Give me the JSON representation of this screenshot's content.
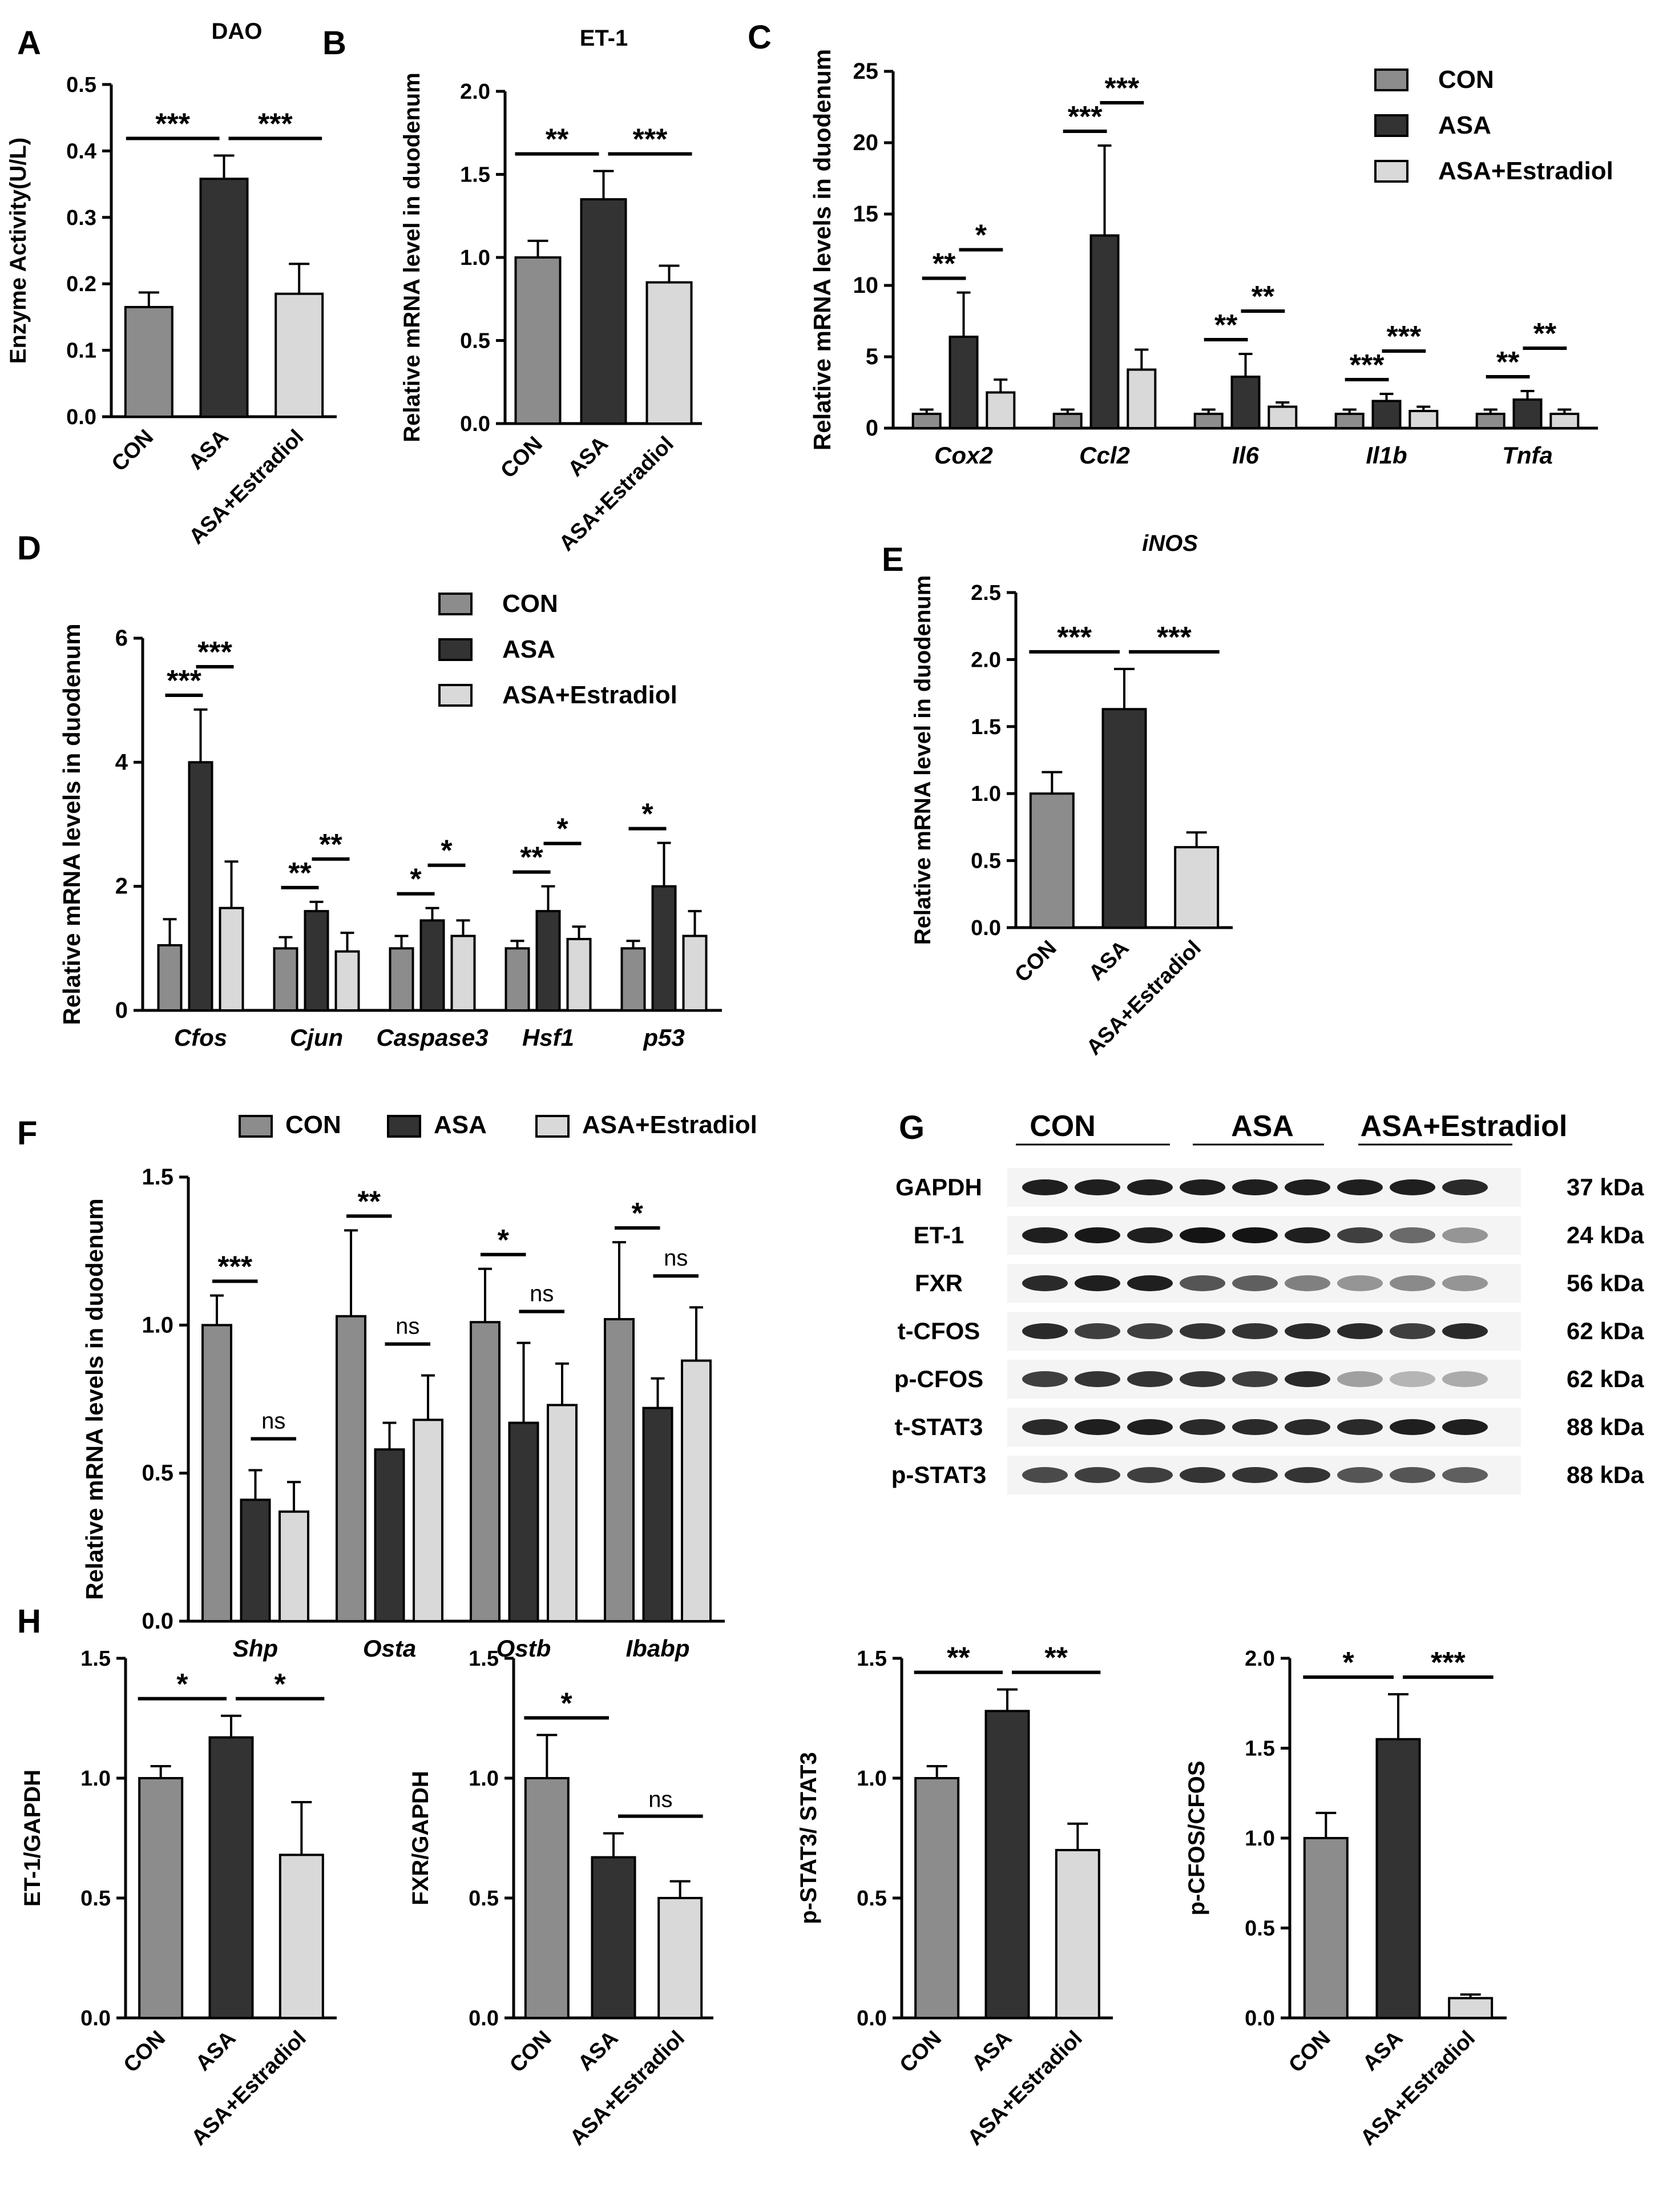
{
  "colors": {
    "con": "#8c8c8c",
    "asa": "#333333",
    "estr": "#d9d9d9",
    "axis": "#000000"
  },
  "chart_data": [
    {
      "id": "A",
      "panel_label": "A",
      "type": "bar",
      "title": "DAO",
      "ylabel": "Enzyme Activity(U/L)",
      "ylim": [
        0,
        0.5
      ],
      "yticks": [
        "0.0",
        "0.1",
        "0.2",
        "0.3",
        "0.4",
        "0.5"
      ],
      "categories": [
        "CON",
        "ASA",
        "ASA+Estradiol"
      ],
      "values": [
        0.165,
        0.358,
        0.185
      ],
      "errors": [
        0.022,
        0.035,
        0.045
      ],
      "sig": [
        {
          "from": 0,
          "to": 1,
          "label": "***"
        },
        {
          "from": 1,
          "to": 2,
          "label": "***"
        }
      ]
    },
    {
      "id": "B",
      "panel_label": "B",
      "type": "bar",
      "title": "ET-1",
      "ylabel": "Relative mRNA level in duodenum",
      "ylim": [
        0,
        2.0
      ],
      "yticks": [
        "0.0",
        "0.5",
        "1.0",
        "1.5",
        "2.0"
      ],
      "categories": [
        "CON",
        "ASA",
        "ASA+Estradiol"
      ],
      "values": [
        1.0,
        1.35,
        0.85
      ],
      "errors": [
        0.1,
        0.17,
        0.1
      ],
      "sig": [
        {
          "from": 0,
          "to": 1,
          "label": "**"
        },
        {
          "from": 1,
          "to": 2,
          "label": "***"
        }
      ]
    },
    {
      "id": "C",
      "panel_label": "C",
      "type": "bar",
      "ylabel": "Relative mRNA levels in duodenum",
      "ylim": [
        0,
        25
      ],
      "yticks": [
        "0",
        "5",
        "10",
        "15",
        "20",
        "25"
      ],
      "categories": [
        "Cox2",
        "Ccl2",
        "Il6",
        "Il1b",
        "Tnfa"
      ],
      "series": [
        {
          "name": "CON",
          "values": [
            1.0,
            1.0,
            1.0,
            1.0,
            1.0
          ],
          "errors": [
            0.3,
            0.3,
            0.3,
            0.3,
            0.3
          ]
        },
        {
          "name": "ASA",
          "values": [
            6.4,
            13.5,
            3.6,
            1.9,
            2.0
          ],
          "errors": [
            3.1,
            6.3,
            1.6,
            0.5,
            0.6
          ]
        },
        {
          "name": "ASA+Estradiol",
          "values": [
            2.5,
            4.1,
            1.5,
            1.2,
            1.0
          ],
          "errors": [
            0.9,
            1.4,
            0.3,
            0.3,
            0.3
          ]
        }
      ],
      "sig": [
        {
          "cat": 0,
          "from": 0,
          "to": 1,
          "label": "**"
        },
        {
          "cat": 0,
          "from": 1,
          "to": 2,
          "label": "*"
        },
        {
          "cat": 1,
          "from": 0,
          "to": 1,
          "label": "***"
        },
        {
          "cat": 1,
          "from": 1,
          "to": 2,
          "label": "***"
        },
        {
          "cat": 2,
          "from": 0,
          "to": 1,
          "label": "**"
        },
        {
          "cat": 2,
          "from": 1,
          "to": 2,
          "label": "**"
        },
        {
          "cat": 3,
          "from": 0,
          "to": 1,
          "label": "***"
        },
        {
          "cat": 3,
          "from": 1,
          "to": 2,
          "label": "***"
        },
        {
          "cat": 4,
          "from": 0,
          "to": 1,
          "label": "**"
        },
        {
          "cat": 4,
          "from": 1,
          "to": 2,
          "label": "**"
        }
      ],
      "legend": [
        "CON",
        "ASA",
        "ASA+Estradiol"
      ]
    },
    {
      "id": "D",
      "panel_label": "D",
      "type": "bar",
      "ylabel": "Relative mRNA levels in duodenum",
      "ylim": [
        0,
        6
      ],
      "yticks": [
        "0",
        "2",
        "4",
        "6"
      ],
      "categories": [
        "Cfos",
        "Cjun",
        "Caspase3",
        "Hsf1",
        "p53"
      ],
      "series": [
        {
          "name": "CON",
          "values": [
            1.05,
            1.0,
            1.0,
            1.0,
            1.0
          ],
          "errors": [
            0.42,
            0.18,
            0.2,
            0.12,
            0.12
          ]
        },
        {
          "name": "ASA",
          "values": [
            4.0,
            1.6,
            1.45,
            1.6,
            2.0
          ],
          "errors": [
            0.85,
            0.15,
            0.2,
            0.4,
            0.7
          ]
        },
        {
          "name": "ASA+Estradiol",
          "values": [
            1.65,
            0.95,
            1.2,
            1.15,
            1.2
          ],
          "errors": [
            0.75,
            0.3,
            0.25,
            0.2,
            0.4
          ]
        }
      ],
      "sig": [
        {
          "cat": 0,
          "from": 0,
          "to": 1,
          "label": "***"
        },
        {
          "cat": 0,
          "from": 1,
          "to": 2,
          "label": "***"
        },
        {
          "cat": 1,
          "from": 0,
          "to": 1,
          "label": "**"
        },
        {
          "cat": 1,
          "from": 1,
          "to": 2,
          "label": "**"
        },
        {
          "cat": 2,
          "from": 0,
          "to": 1,
          "label": "*"
        },
        {
          "cat": 2,
          "from": 1,
          "to": 2,
          "label": "*"
        },
        {
          "cat": 3,
          "from": 0,
          "to": 1,
          "label": "**"
        },
        {
          "cat": 3,
          "from": 1,
          "to": 2,
          "label": "*"
        },
        {
          "cat": 4,
          "from": 0,
          "to": 1,
          "label": "*"
        }
      ],
      "legend": [
        "CON",
        "ASA",
        "ASA+Estradiol"
      ]
    },
    {
      "id": "E",
      "panel_label": "E",
      "type": "bar",
      "title": "iNOS",
      "ylabel": "Relative mRNA level in duodenum",
      "ylim": [
        0,
        2.5
      ],
      "yticks": [
        "0.0",
        "0.5",
        "1.0",
        "1.5",
        "2.0",
        "2.5"
      ],
      "categories": [
        "CON",
        "ASA",
        "ASA+Estradiol"
      ],
      "values": [
        1.0,
        1.63,
        0.6
      ],
      "errors": [
        0.16,
        0.3,
        0.11
      ],
      "sig": [
        {
          "from": 0,
          "to": 1,
          "label": "***"
        },
        {
          "from": 1,
          "to": 2,
          "label": "***"
        }
      ]
    },
    {
      "id": "F",
      "panel_label": "F",
      "type": "bar",
      "ylabel": "Relative mRNA levels in duodenum",
      "ylim": [
        0,
        1.5
      ],
      "yticks": [
        "0.0",
        "0.5",
        "1.0",
        "1.5"
      ],
      "categories": [
        "Shp",
        "Osta",
        "Ostb",
        "Ibabp"
      ],
      "series": [
        {
          "name": "CON",
          "values": [
            1.0,
            1.03,
            1.01,
            1.02
          ],
          "errors": [
            0.1,
            0.29,
            0.18,
            0.26
          ]
        },
        {
          "name": "ASA",
          "values": [
            0.41,
            0.58,
            0.67,
            0.72
          ],
          "errors": [
            0.1,
            0.09,
            0.27,
            0.1
          ]
        },
        {
          "name": "ASA+Estradiol",
          "values": [
            0.37,
            0.68,
            0.73,
            0.88
          ],
          "errors": [
            0.1,
            0.15,
            0.14,
            0.18
          ]
        }
      ],
      "sig": [
        {
          "cat": 0,
          "from": 0,
          "to": 1,
          "label": "***"
        },
        {
          "cat": 0,
          "from": 1,
          "to": 2,
          "label": "ns"
        },
        {
          "cat": 1,
          "from": 0,
          "to": 1,
          "label": "**"
        },
        {
          "cat": 1,
          "from": 1,
          "to": 2,
          "label": "ns"
        },
        {
          "cat": 2,
          "from": 0,
          "to": 1,
          "label": "*"
        },
        {
          "cat": 2,
          "from": 1,
          "to": 2,
          "label": "ns"
        },
        {
          "cat": 3,
          "from": 0,
          "to": 1,
          "label": "*"
        },
        {
          "cat": 3,
          "from": 1,
          "to": 2,
          "label": "ns"
        }
      ],
      "legend": [
        "CON",
        "ASA",
        "ASA+Estradiol"
      ]
    },
    {
      "id": "H1",
      "panel_label": "H",
      "type": "bar",
      "ylabel": "ET-1/GAPDH",
      "ylim": [
        0,
        1.5
      ],
      "yticks": [
        "0.0",
        "0.5",
        "1.0",
        "1.5"
      ],
      "categories": [
        "CON",
        "ASA",
        "ASA+Estradiol"
      ],
      "values": [
        1.0,
        1.17,
        0.68
      ],
      "errors": [
        0.05,
        0.09,
        0.22
      ],
      "sig": [
        {
          "from": 0,
          "to": 1,
          "label": "*"
        },
        {
          "from": 1,
          "to": 2,
          "label": "*"
        }
      ]
    },
    {
      "id": "H2",
      "type": "bar",
      "ylabel": "FXR/GAPDH",
      "ylim": [
        0,
        1.5
      ],
      "yticks": [
        "0.0",
        "0.5",
        "1.0",
        "1.5"
      ],
      "categories": [
        "CON",
        "ASA",
        "ASA+Estradiol"
      ],
      "values": [
        1.0,
        0.67,
        0.5
      ],
      "errors": [
        0.18,
        0.1,
        0.07
      ],
      "sig": [
        {
          "from": 0,
          "to": 1,
          "label": "*"
        },
        {
          "from": 1,
          "to": 2,
          "label": "ns"
        }
      ]
    },
    {
      "id": "H3",
      "type": "bar",
      "ylabel": "p-STAT3/ STAT3",
      "ylim": [
        0,
        1.5
      ],
      "yticks": [
        "0.0",
        "0.5",
        "1.0",
        "1.5"
      ],
      "categories": [
        "CON",
        "ASA",
        "ASA+Estradiol"
      ],
      "values": [
        1.0,
        1.28,
        0.7
      ],
      "errors": [
        0.05,
        0.09,
        0.11
      ],
      "sig": [
        {
          "from": 0,
          "to": 1,
          "label": "**"
        },
        {
          "from": 1,
          "to": 2,
          "label": "**"
        }
      ]
    },
    {
      "id": "H4",
      "type": "bar",
      "ylabel": "p-CFOS/CFOS",
      "ylim": [
        0,
        2.0
      ],
      "yticks": [
        "0.0",
        "0.5",
        "1.0",
        "1.5",
        "2.0"
      ],
      "categories": [
        "CON",
        "ASA",
        "ASA+Estradiol"
      ],
      "values": [
        1.0,
        1.55,
        0.11
      ],
      "errors": [
        0.14,
        0.25,
        0.02
      ],
      "sig": [
        {
          "from": 0,
          "to": 1,
          "label": "*"
        },
        {
          "from": 1,
          "to": 2,
          "label": "***"
        }
      ]
    }
  ],
  "blot": {
    "panel_label": "G",
    "groups": [
      "CON",
      "ASA",
      "ASA+Estradiol"
    ],
    "rows": [
      {
        "name": "GAPDH",
        "kda": "37 kDa",
        "intensities": [
          0.95,
          0.95,
          0.95,
          0.95,
          0.95,
          0.95,
          0.95,
          0.95,
          0.9
        ]
      },
      {
        "name": "ET-1",
        "kda": "24 kDa",
        "intensities": [
          0.95,
          0.98,
          0.95,
          1.0,
          1.0,
          0.95,
          0.8,
          0.6,
          0.4
        ]
      },
      {
        "name": "FXR",
        "kda": "56 kDa",
        "intensities": [
          0.9,
          0.95,
          0.95,
          0.7,
          0.65,
          0.5,
          0.4,
          0.45,
          0.4
        ]
      },
      {
        "name": "t-CFOS",
        "kda": "62 kDa",
        "intensities": [
          0.9,
          0.8,
          0.8,
          0.85,
          0.85,
          0.9,
          0.9,
          0.8,
          0.9
        ]
      },
      {
        "name": "p-CFOS",
        "kda": "62 kDa",
        "intensities": [
          0.8,
          0.85,
          0.85,
          0.85,
          0.8,
          0.9,
          0.35,
          0.25,
          0.3
        ]
      },
      {
        "name": "t-STAT3",
        "kda": "88 kDa",
        "intensities": [
          0.9,
          0.95,
          0.95,
          0.9,
          0.9,
          0.9,
          0.9,
          0.95,
          0.95
        ]
      },
      {
        "name": "p-STAT3",
        "kda": "88 kDa",
        "intensities": [
          0.75,
          0.8,
          0.8,
          0.85,
          0.85,
          0.85,
          0.7,
          0.7,
          0.65
        ]
      }
    ]
  }
}
